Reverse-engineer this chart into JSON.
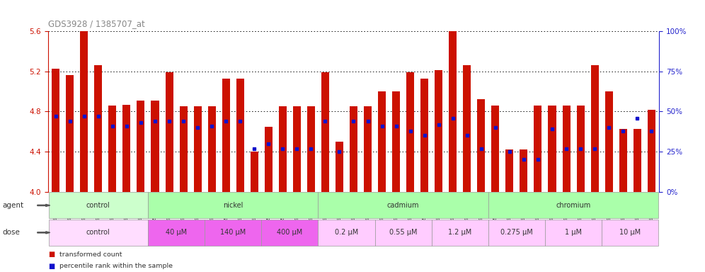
{
  "title": "GDS3928 / 1385707_at",
  "samples": [
    "GSM782280",
    "GSM782281",
    "GSM782291",
    "GSM782302",
    "GSM782303",
    "GSM782313",
    "GSM782314",
    "GSM782282",
    "GSM782293",
    "GSM782304",
    "GSM782315",
    "GSM782283",
    "GSM782294",
    "GSM782305",
    "GSM782316",
    "GSM782284",
    "GSM782295",
    "GSM782306",
    "GSM782317",
    "GSM782288",
    "GSM782299",
    "GSM782310",
    "GSM782321",
    "GSM782289",
    "GSM782300",
    "GSM782311",
    "GSM782322",
    "GSM782290",
    "GSM782301",
    "GSM782312",
    "GSM782323",
    "GSM782285",
    "GSM782296",
    "GSM782307",
    "GSM782318",
    "GSM782286",
    "GSM782297",
    "GSM782308",
    "GSM782319",
    "GSM782287",
    "GSM782298",
    "GSM782309",
    "GSM782320"
  ],
  "bar_values": [
    5.23,
    5.16,
    5.6,
    5.26,
    4.86,
    4.87,
    4.91,
    4.91,
    5.19,
    4.85,
    4.85,
    4.85,
    5.13,
    5.13,
    4.4,
    4.65,
    4.85,
    4.85,
    4.85,
    5.19,
    4.5,
    4.85,
    4.85,
    5.0,
    5.0,
    5.19,
    5.13,
    5.21,
    5.85,
    5.26,
    4.92,
    4.86,
    4.42,
    4.42,
    4.86,
    4.86,
    4.86,
    4.86,
    5.26,
    5.0,
    4.63,
    4.63,
    4.82
  ],
  "percentile_values": [
    47,
    44,
    47,
    47,
    41,
    41,
    43,
    44,
    44,
    44,
    40,
    41,
    44,
    44,
    27,
    30,
    27,
    27,
    27,
    44,
    25,
    44,
    44,
    41,
    41,
    38,
    35,
    42,
    46,
    35,
    27,
    40,
    25,
    20,
    20,
    39,
    27,
    27,
    27,
    40,
    38,
    46,
    38
  ],
  "ylim": [
    4.0,
    5.6
  ],
  "yticks": [
    4.0,
    4.4,
    4.8,
    5.2,
    5.6
  ],
  "right_yticks": [
    0,
    25,
    50,
    75,
    100
  ],
  "bar_color": "#cc1100",
  "dot_color": "#1111cc",
  "title_color": "#888888",
  "yaxis_color": "#cc1100",
  "right_yaxis_color": "#2222cc",
  "agent_groups": [
    {
      "label": "control",
      "start": 0,
      "end": 7,
      "bg": "#ccffcc"
    },
    {
      "label": "nickel",
      "start": 7,
      "end": 19,
      "bg": "#aaffaa"
    },
    {
      "label": "cadmium",
      "start": 19,
      "end": 31,
      "bg": "#aaffaa"
    },
    {
      "label": "chromium",
      "start": 31,
      "end": 43,
      "bg": "#aaffaa"
    }
  ],
  "dose_groups": [
    {
      "label": "control",
      "start": 0,
      "end": 7,
      "bg": "#ffddff"
    },
    {
      "label": "40 μM",
      "start": 7,
      "end": 11,
      "bg": "#ee66ee"
    },
    {
      "label": "140 μM",
      "start": 11,
      "end": 15,
      "bg": "#ee66ee"
    },
    {
      "label": "400 μM",
      "start": 15,
      "end": 19,
      "bg": "#ee66ee"
    },
    {
      "label": "0.2 μM",
      "start": 19,
      "end": 23,
      "bg": "#ffccff"
    },
    {
      "label": "0.55 μM",
      "start": 23,
      "end": 27,
      "bg": "#ffccff"
    },
    {
      "label": "1.2 μM",
      "start": 27,
      "end": 31,
      "bg": "#ffccff"
    },
    {
      "label": "0.275 μM",
      "start": 31,
      "end": 35,
      "bg": "#ffccff"
    },
    {
      "label": "1 μM",
      "start": 35,
      "end": 39,
      "bg": "#ffccff"
    },
    {
      "label": "10 μM",
      "start": 39,
      "end": 43,
      "bg": "#ffccff"
    }
  ]
}
